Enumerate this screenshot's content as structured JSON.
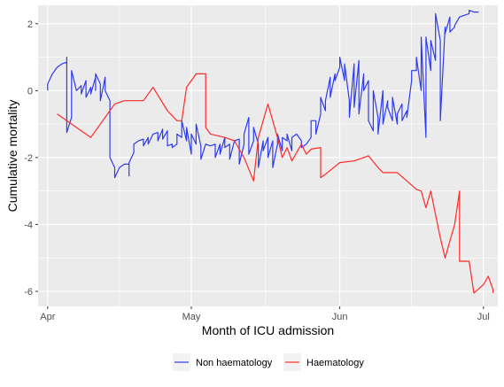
{
  "chart_data": {
    "type": "line",
    "title": "",
    "xlabel": "Month of ICU admission",
    "ylabel": "Cumulative mortality",
    "x_ticks": [
      {
        "date": "2020-04-01",
        "label": "Apr"
      },
      {
        "date": "2020-05-01",
        "label": "May"
      },
      {
        "date": "2020-06-01",
        "label": "Jun"
      },
      {
        "date": "2020-07-01",
        "label": "Jul"
      }
    ],
    "xlim": [
      "2020-03-30",
      "2020-07-04"
    ],
    "y_ticks": [
      2,
      0,
      -2,
      -4,
      -6
    ],
    "ylim": [
      -6.45,
      2.55
    ],
    "grid": true,
    "background": "#ebebeb",
    "legend_position": "bottom",
    "series": [
      {
        "name": "Non haematology",
        "color": "#2e3bf0",
        "points": [
          [
            "2020-04-01",
            0.0
          ],
          [
            "2020-04-01",
            0.2
          ],
          [
            "2020-04-02",
            0.5
          ],
          [
            "2020-04-03",
            0.7
          ],
          [
            "2020-04-04",
            0.8
          ],
          [
            "2020-04-05",
            0.85
          ],
          [
            "2020-04-05",
            0.7
          ],
          [
            "2020-04-05",
            1.0
          ],
          [
            "2020-04-05",
            -1.25
          ],
          [
            "2020-04-06",
            -0.8
          ],
          [
            "2020-04-06",
            0.6
          ],
          [
            "2020-04-07",
            0.0
          ],
          [
            "2020-04-08",
            0.15
          ],
          [
            "2020-04-08",
            -0.1
          ],
          [
            "2020-04-09",
            0.3
          ],
          [
            "2020-04-09",
            -0.2
          ],
          [
            "2020-04-10",
            0.1
          ],
          [
            "2020-04-10",
            -0.1
          ],
          [
            "2020-04-11",
            0.4
          ],
          [
            "2020-04-11",
            0.0
          ],
          [
            "2020-04-11",
            0.5
          ],
          [
            "2020-04-12",
            0.2
          ],
          [
            "2020-04-12",
            -0.3
          ],
          [
            "2020-04-13",
            0.4
          ],
          [
            "2020-04-13",
            0.0
          ],
          [
            "2020-04-14",
            -0.3
          ],
          [
            "2020-04-14",
            -1.2
          ],
          [
            "2020-04-14",
            -2.0
          ],
          [
            "2020-04-15",
            -2.3
          ],
          [
            "2020-04-15",
            -2.6
          ],
          [
            "2020-04-16",
            -2.3
          ],
          [
            "2020-04-17",
            -2.2
          ],
          [
            "2020-04-18",
            -2.2
          ],
          [
            "2020-04-18",
            -2.55
          ],
          [
            "2020-04-18",
            -2.15
          ],
          [
            "2020-04-19",
            -1.85
          ],
          [
            "2020-04-19",
            -1.6
          ],
          [
            "2020-04-20",
            -1.5
          ],
          [
            "2020-04-21",
            -1.45
          ],
          [
            "2020-04-21",
            -1.65
          ],
          [
            "2020-04-22",
            -1.4
          ],
          [
            "2020-04-22",
            -1.6
          ],
          [
            "2020-04-23",
            -1.3
          ],
          [
            "2020-04-24",
            -1.25
          ],
          [
            "2020-04-24",
            -1.5
          ],
          [
            "2020-04-25",
            -1.15
          ],
          [
            "2020-04-25",
            -1.45
          ],
          [
            "2020-04-26",
            -1.2
          ],
          [
            "2020-04-26",
            -1.65
          ],
          [
            "2020-04-27",
            -1.6
          ],
          [
            "2020-04-27",
            -1.7
          ],
          [
            "2020-04-28",
            -1.6
          ],
          [
            "2020-04-28",
            -1.3
          ],
          [
            "2020-04-29",
            -1.4
          ],
          [
            "2020-04-29",
            -0.9
          ],
          [
            "2020-04-30",
            -1.5
          ],
          [
            "2020-04-30",
            -1.1
          ],
          [
            "2020-05-01",
            -1.9
          ],
          [
            "2020-05-01",
            -1.3
          ],
          [
            "2020-05-02",
            -1.6
          ],
          [
            "2020-05-02",
            -1.0
          ],
          [
            "2020-05-03",
            -1.65
          ],
          [
            "2020-05-03",
            -2.05
          ],
          [
            "2020-05-04",
            -1.6
          ],
          [
            "2020-05-05",
            -1.65
          ],
          [
            "2020-05-06",
            -1.6
          ],
          [
            "2020-05-06",
            -2.0
          ],
          [
            "2020-05-07",
            -1.6
          ],
          [
            "2020-05-07",
            -1.9
          ],
          [
            "2020-05-08",
            -1.4
          ],
          [
            "2020-05-08",
            -1.7
          ],
          [
            "2020-05-09",
            -1.6
          ],
          [
            "2020-05-09",
            -2.05
          ],
          [
            "2020-05-10",
            -1.5
          ],
          [
            "2020-05-11",
            -1.45
          ],
          [
            "2020-05-11",
            -2.2
          ],
          [
            "2020-05-12",
            -1.6
          ],
          [
            "2020-05-12",
            -1.3
          ],
          [
            "2020-05-13",
            -0.8
          ],
          [
            "2020-05-13",
            -1.9
          ],
          [
            "2020-05-14",
            -1.5
          ],
          [
            "2020-05-14",
            -1.1
          ],
          [
            "2020-05-15",
            -1.6
          ],
          [
            "2020-05-15",
            -2.3
          ],
          [
            "2020-05-16",
            -1.5
          ],
          [
            "2020-05-16",
            -1.8
          ],
          [
            "2020-05-17",
            -1.4
          ],
          [
            "2020-05-17",
            -2.0
          ],
          [
            "2020-05-18",
            -1.5
          ],
          [
            "2020-05-18",
            -2.3
          ],
          [
            "2020-05-19",
            -1.6
          ],
          [
            "2020-05-19",
            -1.3
          ],
          [
            "2020-05-20",
            -1.8
          ],
          [
            "2020-05-20",
            -1.4
          ],
          [
            "2020-05-21",
            -1.5
          ],
          [
            "2020-05-21",
            -1.3
          ],
          [
            "2020-05-22",
            -1.8
          ],
          [
            "2020-05-22",
            -1.4
          ],
          [
            "2020-05-23",
            -1.3
          ],
          [
            "2020-05-24",
            -1.5
          ],
          [
            "2020-05-24",
            -1.7
          ],
          [
            "2020-05-25",
            -1.6
          ],
          [
            "2020-05-26",
            -1.4
          ],
          [
            "2020-05-26",
            -0.9
          ],
          [
            "2020-05-27",
            -0.9
          ],
          [
            "2020-05-27",
            -1.3
          ],
          [
            "2020-05-28",
            -0.7
          ],
          [
            "2020-05-28",
            -0.2
          ],
          [
            "2020-05-29",
            -0.6
          ],
          [
            "2020-05-29",
            -0.3
          ],
          [
            "2020-05-30",
            0.4
          ],
          [
            "2020-05-30",
            -0.2
          ],
          [
            "2020-05-31",
            0.5
          ],
          [
            "2020-05-31",
            0.3
          ],
          [
            "2020-06-01",
            0.7
          ],
          [
            "2020-06-01",
            1.0
          ],
          [
            "2020-06-02",
            0.3
          ],
          [
            "2020-06-02",
            0.8
          ],
          [
            "2020-06-03",
            -0.3
          ],
          [
            "2020-06-03",
            -0.8
          ],
          [
            "2020-06-04",
            0.8
          ],
          [
            "2020-06-04",
            -0.5
          ],
          [
            "2020-06-05",
            0.9
          ],
          [
            "2020-06-05",
            -0.7
          ],
          [
            "2020-06-06",
            0.5
          ],
          [
            "2020-06-06",
            0.0
          ],
          [
            "2020-06-07",
            0.3
          ],
          [
            "2020-06-07",
            -0.9
          ],
          [
            "2020-06-08",
            -1.2
          ],
          [
            "2020-06-08",
            0.0
          ],
          [
            "2020-06-09",
            -0.8
          ],
          [
            "2020-06-09",
            -1.3
          ],
          [
            "2020-06-10",
            0.0
          ],
          [
            "2020-06-10",
            -1.0
          ],
          [
            "2020-06-11",
            -0.3
          ],
          [
            "2020-06-11",
            -0.5
          ],
          [
            "2020-06-12",
            -0.9
          ],
          [
            "2020-06-12",
            -0.2
          ],
          [
            "2020-06-13",
            -1.0
          ],
          [
            "2020-06-13",
            -0.7
          ],
          [
            "2020-06-14",
            -0.4
          ],
          [
            "2020-06-14",
            -0.9
          ],
          [
            "2020-06-15",
            -0.6
          ],
          [
            "2020-06-15",
            -0.8
          ],
          [
            "2020-06-16",
            0.3
          ],
          [
            "2020-06-16",
            0.6
          ],
          [
            "2020-06-17",
            0.6
          ],
          [
            "2020-06-17",
            1.0
          ],
          [
            "2020-06-18",
            0.0
          ],
          [
            "2020-06-18",
            1.6
          ],
          [
            "2020-06-19",
            -1.4
          ],
          [
            "2020-06-19",
            1.6
          ],
          [
            "2020-06-20",
            0.6
          ],
          [
            "2020-06-20",
            1.5
          ],
          [
            "2020-06-21",
            0.9
          ],
          [
            "2020-06-21",
            2.3
          ],
          [
            "2020-06-22",
            1.5
          ],
          [
            "2020-06-22",
            -0.9
          ],
          [
            "2020-06-23",
            1.9
          ],
          [
            "2020-06-23",
            1.7
          ],
          [
            "2020-06-24",
            2.2
          ],
          [
            "2020-06-24",
            1.75
          ],
          [
            "2020-06-25",
            1.9
          ],
          [
            "2020-06-25",
            1.95
          ],
          [
            "2020-06-26",
            2.2
          ],
          [
            "2020-06-27",
            2.25
          ],
          [
            "2020-06-28",
            2.3
          ],
          [
            "2020-06-28",
            2.4
          ],
          [
            "2020-06-29",
            2.35
          ],
          [
            "2020-06-30",
            2.35
          ]
        ]
      },
      {
        "name": "Haematology",
        "color": "#ff2a2a",
        "points": [
          [
            "2020-04-03",
            -0.7
          ],
          [
            "2020-04-10",
            -1.4
          ],
          [
            "2020-04-15",
            -0.4
          ],
          [
            "2020-04-17",
            -0.3
          ],
          [
            "2020-04-21",
            -0.3
          ],
          [
            "2020-04-23",
            0.1
          ],
          [
            "2020-04-26",
            -0.6
          ],
          [
            "2020-04-28",
            -0.9
          ],
          [
            "2020-04-29",
            -0.9
          ],
          [
            "2020-04-30",
            0.1
          ],
          [
            "2020-05-02",
            0.5
          ],
          [
            "2020-05-04",
            0.5
          ],
          [
            "2020-05-04",
            -1.1
          ],
          [
            "2020-05-05",
            -1.3
          ],
          [
            "2020-05-08",
            -1.4
          ],
          [
            "2020-05-10",
            -1.5
          ],
          [
            "2020-05-12",
            -2.0
          ],
          [
            "2020-05-14",
            -2.7
          ],
          [
            "2020-05-15",
            -1.4
          ],
          [
            "2020-05-17",
            -0.4
          ],
          [
            "2020-05-19",
            -1.4
          ],
          [
            "2020-05-20",
            -2.0
          ],
          [
            "2020-05-21",
            -1.7
          ],
          [
            "2020-05-22",
            -2.1
          ],
          [
            "2020-05-24",
            -1.6
          ],
          [
            "2020-05-25",
            -1.9
          ],
          [
            "2020-05-26",
            -1.75
          ],
          [
            "2020-05-28",
            -1.7
          ],
          [
            "2020-05-28",
            -2.6
          ],
          [
            "2020-05-29",
            -2.5
          ],
          [
            "2020-06-01",
            -2.15
          ],
          [
            "2020-06-04",
            -2.1
          ],
          [
            "2020-06-07",
            -1.95
          ],
          [
            "2020-06-09",
            -2.3
          ],
          [
            "2020-06-10",
            -2.45
          ],
          [
            "2020-06-13",
            -2.45
          ],
          [
            "2020-06-17",
            -2.95
          ],
          [
            "2020-06-18",
            -3.0
          ],
          [
            "2020-06-19",
            -3.5
          ],
          [
            "2020-06-20",
            -3.0
          ],
          [
            "2020-06-22",
            -4.4
          ],
          [
            "2020-06-23",
            -5.0
          ],
          [
            "2020-06-25",
            -4.0
          ],
          [
            "2020-06-26",
            -3.0
          ],
          [
            "2020-06-26",
            -5.1
          ],
          [
            "2020-06-28",
            -5.1
          ],
          [
            "2020-06-29",
            -6.05
          ],
          [
            "2020-07-01",
            -5.8
          ],
          [
            "2020-07-02",
            -5.55
          ],
          [
            "2020-07-03",
            -5.95
          ],
          [
            "2020-07-03",
            -6.05
          ]
        ]
      }
    ]
  }
}
